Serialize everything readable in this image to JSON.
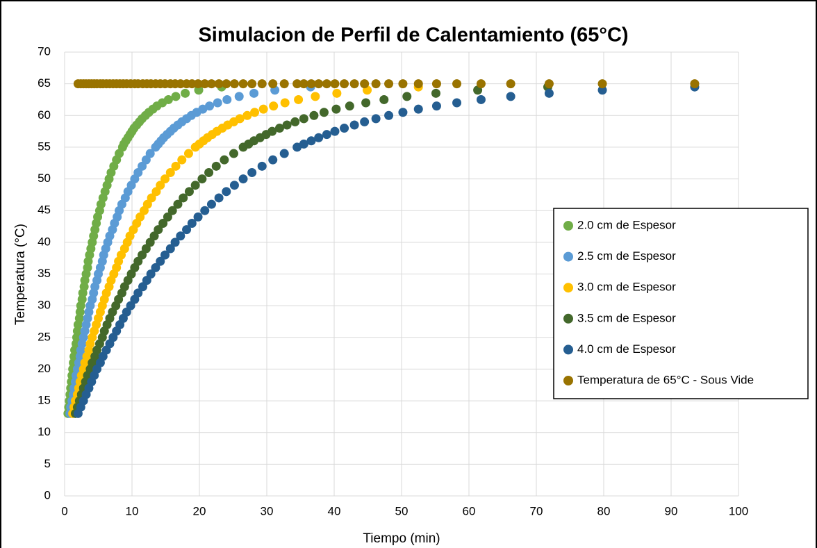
{
  "chart_data": {
    "type": "scatter",
    "title": "Simulacion de Perfil de Calentamiento (65°C)",
    "xlabel": "Tiempo (min)",
    "ylabel": "Temperatura (°C)",
    "xlim": [
      0,
      100
    ],
    "xticks": [
      0,
      10,
      20,
      30,
      40,
      50,
      60,
      70,
      80,
      90,
      100
    ],
    "ylim": [
      0,
      70
    ],
    "yticks": [
      0,
      5,
      10,
      15,
      20,
      25,
      30,
      35,
      40,
      45,
      50,
      55,
      60,
      65,
      70
    ],
    "grid": true,
    "legend": "right",
    "series": [
      {
        "name": "2.0 cm de Espesor",
        "color": "#70ad47",
        "x": [
          0.5,
          0.6,
          0.7,
          0.8,
          0.9,
          1.0,
          1.1,
          1.2,
          1.3,
          1.4,
          1.5,
          1.7,
          1.8,
          1.9,
          2.0,
          2.2,
          2.3,
          2.4,
          2.6,
          2.7,
          2.9,
          3.0,
          3.2,
          3.4,
          3.5,
          3.7,
          3.9,
          4.1,
          4.3,
          4.5,
          4.7,
          4.9,
          5.2,
          5.4,
          5.7,
          6.0,
          6.3,
          6.6,
          6.9,
          7.3,
          7.7,
          8.1,
          8.6,
          8.8,
          9.1,
          9.4,
          9.7,
          10.0,
          10.3,
          10.7,
          11.1,
          11.5,
          12.0,
          12.5,
          13.1,
          13.7,
          14.5,
          15.4,
          16.5,
          17.9,
          19.9,
          23.3
        ],
        "values": [
          13,
          14,
          15,
          16,
          17,
          18,
          19,
          20,
          21,
          22,
          23,
          24,
          25,
          26,
          27,
          28,
          29,
          30,
          31,
          32,
          33,
          34,
          35,
          36,
          37,
          38,
          39,
          40,
          41,
          42,
          43,
          44,
          45,
          46,
          47,
          48,
          49,
          50,
          51,
          52,
          53,
          54,
          55,
          55.5,
          56,
          56.5,
          57,
          57.5,
          58,
          58.5,
          59,
          59.5,
          60,
          60.5,
          61,
          61.5,
          62,
          62.5,
          63,
          63.5,
          64,
          64.5
        ]
      },
      {
        "name": "2.5 cm de Espesor",
        "color": "#5b9bd5",
        "x": [
          0.8,
          0.9,
          1.1,
          1.3,
          1.4,
          1.6,
          1.7,
          1.9,
          2.1,
          2.3,
          2.4,
          2.6,
          2.8,
          3.0,
          3.2,
          3.4,
          3.6,
          3.8,
          4.1,
          4.3,
          4.5,
          4.8,
          5.0,
          5.3,
          5.6,
          5.8,
          6.1,
          6.4,
          6.7,
          7.1,
          7.4,
          7.8,
          8.1,
          8.5,
          9.0,
          9.4,
          9.9,
          10.4,
          10.9,
          11.5,
          12.1,
          12.7,
          13.5,
          13.9,
          14.3,
          14.7,
          15.2,
          15.7,
          16.2,
          16.8,
          17.4,
          18.1,
          18.8,
          19.6,
          20.5,
          21.5,
          22.7,
          24.1,
          25.9,
          28.1,
          31.2,
          36.5
        ],
        "values": [
          13,
          14,
          15,
          16,
          17,
          18,
          19,
          20,
          21,
          22,
          23,
          24,
          25,
          26,
          27,
          28,
          29,
          30,
          31,
          32,
          33,
          34,
          35,
          36,
          37,
          38,
          39,
          40,
          41,
          42,
          43,
          44,
          45,
          46,
          47,
          48,
          49,
          50,
          51,
          52,
          53,
          54,
          55,
          55.5,
          56,
          56.5,
          57,
          57.5,
          58,
          58.5,
          59,
          59.5,
          60,
          60.5,
          61,
          61.5,
          62,
          62.5,
          63,
          63.5,
          64,
          64.5
        ]
      },
      {
        "name": "3.0 cm de Espesor",
        "color": "#ffc000",
        "x": [
          1.2,
          1.4,
          1.6,
          1.9,
          2.1,
          2.3,
          2.5,
          2.8,
          3.0,
          3.3,
          3.6,
          3.8,
          4.1,
          4.4,
          4.7,
          5.0,
          5.3,
          5.6,
          5.9,
          6.2,
          6.6,
          6.9,
          7.3,
          7.7,
          8.0,
          8.4,
          8.9,
          9.3,
          9.7,
          10.2,
          10.7,
          11.2,
          11.8,
          12.3,
          12.9,
          13.6,
          14.2,
          14.9,
          15.7,
          16.5,
          17.4,
          18.4,
          19.4,
          20.0,
          20.6,
          21.2,
          21.9,
          22.6,
          23.4,
          24.2,
          25.1,
          26.0,
          27.1,
          28.2,
          29.5,
          31.0,
          32.7,
          34.7,
          37.2,
          40.4,
          44.9,
          52.5
        ],
        "values": [
          13,
          14,
          15,
          16,
          17,
          18,
          19,
          20,
          21,
          22,
          23,
          24,
          25,
          26,
          27,
          28,
          29,
          30,
          31,
          32,
          33,
          34,
          35,
          36,
          37,
          38,
          39,
          40,
          41,
          42,
          43,
          44,
          45,
          46,
          47,
          48,
          49,
          50,
          51,
          52,
          53,
          54,
          55,
          55.5,
          56,
          56.5,
          57,
          57.5,
          58,
          58.5,
          59,
          59.5,
          60,
          60.5,
          61,
          61.5,
          62,
          62.5,
          63,
          63.5,
          64,
          64.5
        ]
      },
      {
        "name": "3.5 cm de Espesor",
        "color": "#43682b",
        "x": [
          1.6,
          1.9,
          2.2,
          2.5,
          2.8,
          3.1,
          3.4,
          3.8,
          4.1,
          4.5,
          4.8,
          5.2,
          5.6,
          5.9,
          6.3,
          6.7,
          7.1,
          7.6,
          8.0,
          8.5,
          8.9,
          9.4,
          9.9,
          10.4,
          10.9,
          11.5,
          12.1,
          12.7,
          13.3,
          13.9,
          14.6,
          15.3,
          16.0,
          16.8,
          17.6,
          18.5,
          19.4,
          20.4,
          21.4,
          22.5,
          23.7,
          25.1,
          26.5,
          27.3,
          28.1,
          29.0,
          29.9,
          30.8,
          31.9,
          33.0,
          34.2,
          35.5,
          37.0,
          38.5,
          40.3,
          42.3,
          44.7,
          47.4,
          50.8,
          55.1,
          61.3,
          71.7
        ],
        "values": [
          13,
          14,
          15,
          16,
          17,
          18,
          19,
          20,
          21,
          22,
          23,
          24,
          25,
          26,
          27,
          28,
          29,
          30,
          31,
          32,
          33,
          34,
          35,
          36,
          37,
          38,
          39,
          40,
          41,
          42,
          43,
          44,
          45,
          46,
          47,
          48,
          49,
          50,
          51,
          52,
          53,
          54,
          55,
          55.5,
          56,
          56.5,
          57,
          57.5,
          58,
          58.5,
          59,
          59.5,
          60,
          60.5,
          61,
          61.5,
          62,
          62.5,
          63,
          63.5,
          64,
          64.5
        ]
      },
      {
        "name": "4.0 cm de Espesor",
        "color": "#255e91",
        "x": [
          2.0,
          2.4,
          2.8,
          3.2,
          3.6,
          4.0,
          4.4,
          4.8,
          5.3,
          5.7,
          6.2,
          6.7,
          7.2,
          7.7,
          8.2,
          8.7,
          9.2,
          9.8,
          10.4,
          10.9,
          11.6,
          12.2,
          12.8,
          13.5,
          14.2,
          14.9,
          15.7,
          16.4,
          17.2,
          18.1,
          18.9,
          19.8,
          20.8,
          21.8,
          22.9,
          24.0,
          25.2,
          26.5,
          27.8,
          29.3,
          30.9,
          32.6,
          34.5,
          35.5,
          36.6,
          37.7,
          38.9,
          40.1,
          41.5,
          43.0,
          44.5,
          46.2,
          48.1,
          50.2,
          52.5,
          55.2,
          58.2,
          61.8,
          66.2,
          71.9,
          79.8,
          93.5
        ],
        "values": [
          13,
          14,
          15,
          16,
          17,
          18,
          19,
          20,
          21,
          22,
          23,
          24,
          25,
          26,
          27,
          28,
          29,
          30,
          31,
          32,
          33,
          34,
          35,
          36,
          37,
          38,
          39,
          40,
          41,
          42,
          43,
          44,
          45,
          46,
          47,
          48,
          49,
          50,
          51,
          52,
          53,
          54,
          55,
          55.5,
          56,
          56.5,
          57,
          57.5,
          58,
          58.5,
          59,
          59.5,
          60,
          60.5,
          61,
          61.5,
          62,
          62.5,
          63,
          63.5,
          64,
          64.5
        ]
      },
      {
        "name": "Temperatura de 65°C - Sous Vide",
        "color": "#997300",
        "x": [
          2.0,
          2.4,
          2.8,
          3.2,
          3.6,
          4.0,
          4.4,
          4.8,
          5.3,
          5.7,
          6.2,
          6.7,
          7.2,
          7.7,
          8.2,
          8.7,
          9.2,
          9.8,
          10.4,
          10.9,
          11.6,
          12.2,
          12.8,
          13.5,
          14.2,
          14.9,
          15.7,
          16.4,
          17.2,
          18.1,
          18.9,
          19.8,
          20.8,
          21.8,
          22.9,
          24.0,
          25.2,
          26.5,
          27.8,
          29.3,
          30.9,
          32.6,
          34.5,
          35.5,
          36.6,
          37.7,
          38.9,
          40.1,
          41.5,
          43.0,
          44.5,
          46.2,
          48.1,
          50.2,
          52.5,
          55.2,
          58.2,
          61.8,
          66.2,
          71.9,
          79.8,
          93.5
        ],
        "values": [
          65,
          65,
          65,
          65,
          65,
          65,
          65,
          65,
          65,
          65,
          65,
          65,
          65,
          65,
          65,
          65,
          65,
          65,
          65,
          65,
          65,
          65,
          65,
          65,
          65,
          65,
          65,
          65,
          65,
          65,
          65,
          65,
          65,
          65,
          65,
          65,
          65,
          65,
          65,
          65,
          65,
          65,
          65,
          65,
          65,
          65,
          65,
          65,
          65,
          65,
          65,
          65,
          65,
          65,
          65,
          65,
          65,
          65,
          65,
          65,
          65,
          65
        ]
      }
    ]
  }
}
